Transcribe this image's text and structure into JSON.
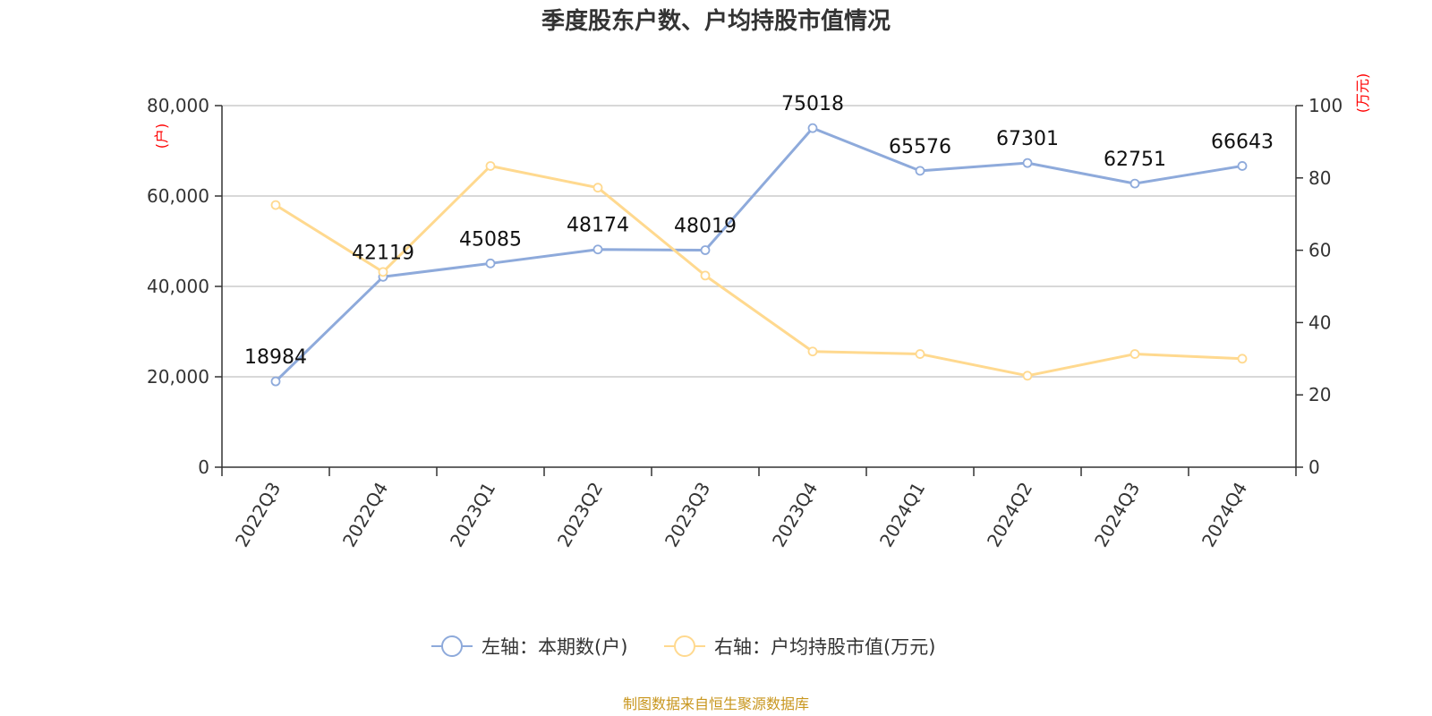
{
  "title": "季度股东户数、户均持股市值情况",
  "source": "制图数据来自恒生聚源数据库",
  "chart_data": {
    "type": "line",
    "title": "季度股东户数、户均持股市值情况",
    "categories": [
      "2022Q3",
      "2022Q4",
      "2023Q1",
      "2023Q2",
      "2023Q3",
      "2023Q4",
      "2024Q1",
      "2024Q2",
      "2024Q3",
      "2024Q4"
    ],
    "left_axis": {
      "unit": "(户)",
      "range": [
        0,
        80000
      ],
      "ticks": [
        0,
        20000,
        40000,
        60000,
        80000
      ],
      "tick_labels": [
        "0",
        "20,000",
        "40,000",
        "60,000",
        "80,000"
      ]
    },
    "right_axis": {
      "unit": "(万元)",
      "range": [
        0,
        100
      ],
      "ticks": [
        0,
        20,
        40,
        60,
        80,
        100
      ],
      "tick_labels": [
        "0",
        "20",
        "40",
        "60",
        "80",
        "100"
      ]
    },
    "grid": true,
    "legend_position": "bottom-center",
    "series": [
      {
        "name": "左轴：本期数(户)",
        "axis": "left",
        "color": "#8eaadb",
        "values": [
          18984,
          42119,
          45085,
          48174,
          48019,
          75018,
          65576,
          67301,
          62751,
          66643
        ],
        "labels": [
          "18984",
          "42119",
          "45085",
          "48174",
          "48019",
          "75018",
          "65576",
          "67301",
          "62751",
          "66643"
        ]
      },
      {
        "name": "右轴：户均持股市值(万元)",
        "axis": "right",
        "color": "#ffd98f",
        "values": [
          72.5,
          54.0,
          83.3,
          77.3,
          53.0,
          32.0,
          31.3,
          25.3,
          31.3,
          30.0
        ]
      }
    ]
  }
}
